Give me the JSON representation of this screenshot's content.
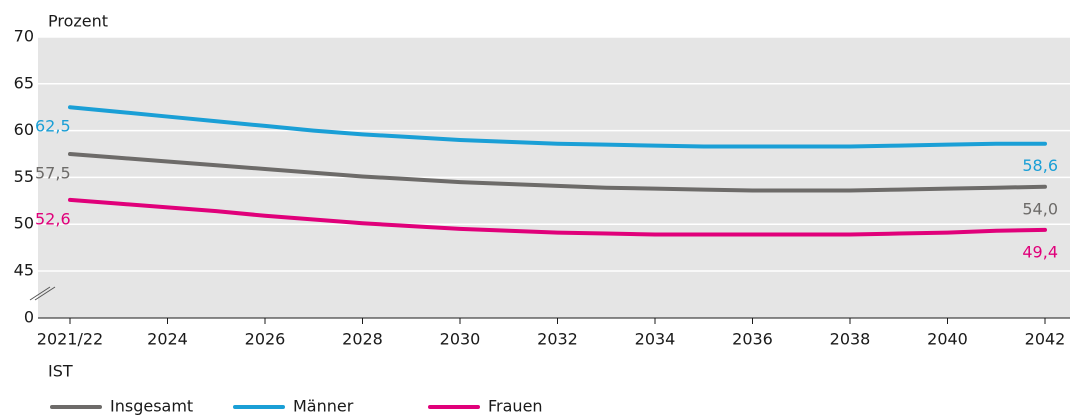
{
  "chart_data": {
    "type": "line",
    "y_label": "Prozent",
    "annotation": "IST",
    "categories": [
      "2021/22",
      null,
      "2024",
      null,
      "2026",
      null,
      "2028",
      null,
      "2030",
      null,
      "2032",
      null,
      "2034",
      null,
      "2036",
      null,
      "2038",
      null,
      "2040",
      null,
      "2042"
    ],
    "series": [
      {
        "name": "Insgesamt",
        "color": "#6d6b69",
        "values": [
          57.5,
          57.1,
          56.7,
          56.3,
          55.9,
          55.5,
          55.1,
          54.8,
          54.5,
          54.3,
          54.1,
          53.9,
          53.8,
          53.7,
          53.6,
          53.6,
          53.6,
          53.7,
          53.8,
          53.9,
          54.0
        ],
        "value_labels": [
          "57,5",
          null,
          null,
          null,
          null,
          null,
          null,
          null,
          null,
          null,
          null,
          null,
          null,
          null,
          null,
          null,
          null,
          null,
          null,
          null,
          "54,0"
        ]
      },
      {
        "name": "Männer",
        "color": "#1a9fd6",
        "values": [
          62.5,
          62.0,
          61.5,
          61.0,
          60.5,
          60.0,
          59.6,
          59.3,
          59.0,
          58.8,
          58.6,
          58.5,
          58.4,
          58.3,
          58.3,
          58.3,
          58.3,
          58.4,
          58.5,
          58.6,
          58.6
        ],
        "value_labels": [
          "62,5",
          null,
          null,
          null,
          null,
          null,
          null,
          null,
          null,
          null,
          null,
          null,
          null,
          null,
          null,
          null,
          null,
          null,
          null,
          null,
          "58,6"
        ]
      },
      {
        "name": "Frauen",
        "color": "#e0007a",
        "values": [
          52.6,
          52.2,
          51.8,
          51.4,
          50.9,
          50.5,
          50.1,
          49.8,
          49.5,
          49.3,
          49.1,
          49.0,
          48.9,
          48.9,
          48.9,
          48.9,
          48.9,
          49.0,
          49.1,
          49.3,
          49.4
        ],
        "value_labels": [
          "52,6",
          null,
          null,
          null,
          null,
          null,
          null,
          null,
          null,
          null,
          null,
          null,
          null,
          null,
          null,
          null,
          null,
          null,
          null,
          null,
          "49,4"
        ]
      }
    ],
    "ylim": [
      0,
      70
    ],
    "yticks": [
      0,
      45,
      50,
      55,
      60,
      65,
      70
    ],
    "axis_break": true,
    "grid": true
  }
}
